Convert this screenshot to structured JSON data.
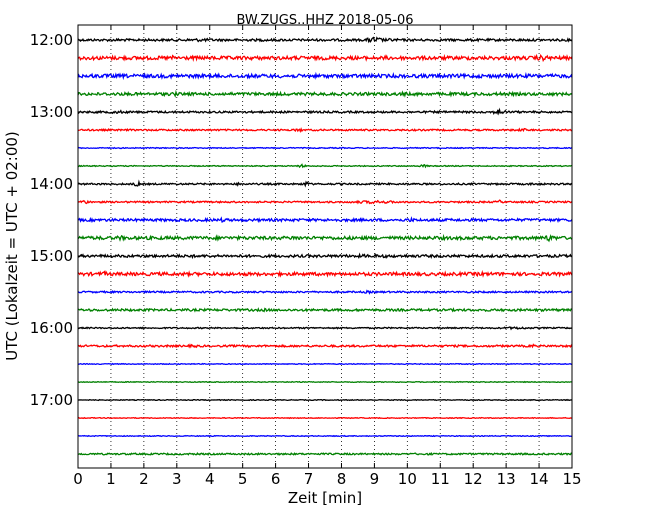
{
  "chart_data": {
    "type": "line",
    "title": "BW.ZUGS..HHZ 2018-05-06",
    "xlabel": "Zeit  [min]",
    "ylabel": "UTC (Lokalzeit = UTC + 02:00)",
    "xlim": [
      0,
      15
    ],
    "x_ticks": [
      "0",
      "1",
      "2",
      "3",
      "4",
      "5",
      "6",
      "7",
      "8",
      "9",
      "10",
      "11",
      "12",
      "13",
      "14",
      "15"
    ],
    "y_tick_labels": [
      "12:00",
      "13:00",
      "14:00",
      "15:00",
      "16:00",
      "17:00"
    ],
    "grid": "vertical dotted",
    "traces": [
      {
        "label": "12:00",
        "color": "#000000",
        "noise": 0.35,
        "bursts": [
          [
            1.2,
            4,
            0.4
          ],
          [
            3.7,
            2,
            0.5
          ],
          [
            5.6,
            4,
            0.4
          ],
          [
            9.0,
            0.6,
            1.0
          ],
          [
            9.5,
            1,
            0.5
          ]
        ]
      },
      {
        "label": "12:15",
        "color": "#ff0000",
        "noise": 0.55,
        "bursts": [
          [
            1.1,
            1,
            0.4
          ],
          [
            2.9,
            0.5,
            0.8
          ],
          [
            9.3,
            0.5,
            0.7
          ],
          [
            14.1,
            0.8,
            0.9
          ]
        ]
      },
      {
        "label": "12:30",
        "color": "#0000ff",
        "noise": 0.55,
        "bursts": [
          [
            4.0,
            4.5,
            0.5
          ],
          [
            8.5,
            2,
            0.6
          ],
          [
            10.6,
            0.3,
            0.6
          ]
        ]
      },
      {
        "label": "12:45",
        "color": "#008000",
        "noise": 0.45,
        "bursts": [
          [
            2.9,
            0.4,
            0.8
          ],
          [
            9.9,
            0.4,
            0.7
          ],
          [
            12.8,
            0.3,
            0.6
          ]
        ]
      },
      {
        "label": "13:00",
        "color": "#000000",
        "noise": 0.3,
        "bursts": [
          [
            1.2,
            1,
            0.5
          ],
          [
            12.8,
            0.4,
            1.0
          ]
        ]
      },
      {
        "label": "13:15",
        "color": "#ff0000",
        "noise": 0.25,
        "bursts": [
          [
            6.7,
            0.3,
            0.6
          ],
          [
            13.5,
            0.3,
            0.6
          ]
        ]
      },
      {
        "label": "13:30",
        "color": "#0000ff",
        "noise": 0.15,
        "bursts": []
      },
      {
        "label": "13:45",
        "color": "#008000",
        "noise": 0.15,
        "bursts": [
          [
            6.8,
            0.3,
            0.5
          ],
          [
            10.5,
            0.3,
            0.5
          ]
        ]
      },
      {
        "label": "14:00",
        "color": "#000000",
        "noise": 0.25,
        "bursts": [
          [
            1.8,
            0.3,
            0.8
          ],
          [
            4.9,
            0.3,
            0.5
          ],
          [
            6.9,
            0.3,
            0.8
          ],
          [
            13.8,
            0.5,
            0.4
          ]
        ]
      },
      {
        "label": "14:15",
        "color": "#ff0000",
        "noise": 0.25,
        "bursts": [
          [
            0.2,
            0.3,
            0.7
          ],
          [
            9.0,
            2,
            0.5
          ],
          [
            12.8,
            0.3,
            0.6
          ]
        ]
      },
      {
        "label": "14:30",
        "color": "#0000ff",
        "noise": 0.4,
        "bursts": [
          [
            4.4,
            0.4,
            0.7
          ],
          [
            10.1,
            0.4,
            0.7
          ]
        ]
      },
      {
        "label": "14:45",
        "color": "#008000",
        "noise": 0.5,
        "bursts": [
          [
            1.3,
            0.4,
            0.8
          ],
          [
            6.6,
            0.5,
            0.8
          ],
          [
            11.0,
            1,
            0.6
          ],
          [
            14.3,
            0.6,
            1.0
          ]
        ]
      },
      {
        "label": "15:00",
        "color": "#000000",
        "noise": 0.4,
        "bursts": [
          [
            3.4,
            0.3,
            0.7
          ],
          [
            9.0,
            6,
            0.5
          ]
        ]
      },
      {
        "label": "15:15",
        "color": "#ff0000",
        "noise": 0.5,
        "bursts": [
          [
            0.8,
            0.5,
            0.8
          ],
          [
            4.5,
            1,
            0.5
          ],
          [
            12.2,
            0.5,
            0.7
          ]
        ]
      },
      {
        "label": "15:30",
        "color": "#0000ff",
        "noise": 0.25,
        "bursts": [
          [
            8.8,
            0.3,
            0.5
          ]
        ]
      },
      {
        "label": "15:45",
        "color": "#008000",
        "noise": 0.35,
        "bursts": [
          [
            0.3,
            0.8,
            0.4
          ],
          [
            5.7,
            0.3,
            0.6
          ]
        ]
      },
      {
        "label": "16:00",
        "color": "#000000",
        "noise": 0.2,
        "bursts": [
          [
            13.3,
            1.3,
            0.4
          ]
        ]
      },
      {
        "label": "16:15",
        "color": "#ff0000",
        "noise": 0.3,
        "bursts": [
          [
            3.5,
            0.3,
            0.6
          ],
          [
            13.8,
            0.3,
            0.6
          ]
        ]
      },
      {
        "label": "16:30",
        "color": "#0000ff",
        "noise": 0.12,
        "bursts": []
      },
      {
        "label": "16:45",
        "color": "#008000",
        "noise": 0.12,
        "bursts": []
      },
      {
        "label": "17:00",
        "color": "#000000",
        "noise": 0.12,
        "bursts": []
      },
      {
        "label": "17:15",
        "color": "#ff0000",
        "noise": 0.12,
        "bursts": []
      },
      {
        "label": "17:30",
        "color": "#0000ff",
        "noise": 0.12,
        "bursts": []
      },
      {
        "label": "17:45",
        "color": "#008000",
        "noise": 0.25,
        "bursts": [
          [
            10.5,
            3.5,
            0.3
          ]
        ]
      }
    ]
  }
}
